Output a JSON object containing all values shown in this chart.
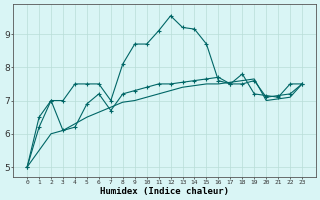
{
  "xlabel": "Humidex (Indice chaleur)",
  "bg_color": "#d9f5f5",
  "line_color": "#006666",
  "grid_color": "#b8ddd8",
  "x_values": [
    0,
    1,
    2,
    3,
    4,
    5,
    6,
    7,
    8,
    9,
    10,
    11,
    12,
    13,
    14,
    15,
    16,
    17,
    18,
    19,
    20,
    21,
    22,
    23
  ],
  "line1": [
    5.0,
    6.5,
    7.0,
    7.0,
    7.5,
    7.5,
    7.5,
    7.0,
    8.1,
    8.7,
    8.7,
    9.1,
    9.55,
    9.2,
    9.15,
    8.7,
    7.6,
    7.5,
    7.8,
    7.2,
    7.15,
    7.1,
    7.5,
    7.5
  ],
  "line2": [
    5.0,
    6.2,
    7.0,
    6.1,
    6.2,
    6.9,
    7.2,
    6.7,
    7.2,
    7.3,
    7.4,
    7.5,
    7.5,
    7.55,
    7.6,
    7.65,
    7.7,
    7.5,
    7.5,
    7.6,
    7.1,
    7.15,
    7.2,
    7.5
  ],
  "line3": [
    5.0,
    5.5,
    6.0,
    6.1,
    6.3,
    6.5,
    6.65,
    6.8,
    6.95,
    7.0,
    7.1,
    7.2,
    7.3,
    7.4,
    7.45,
    7.5,
    7.5,
    7.55,
    7.6,
    7.65,
    7.0,
    7.05,
    7.1,
    7.5
  ],
  "ylim": [
    4.7,
    9.9
  ],
  "yticks": [
    5,
    6,
    7,
    8,
    9
  ],
  "xticks": [
    0,
    1,
    2,
    3,
    4,
    5,
    6,
    7,
    8,
    9,
    10,
    11,
    12,
    13,
    14,
    15,
    16,
    17,
    18,
    19,
    20,
    21,
    22,
    23
  ]
}
